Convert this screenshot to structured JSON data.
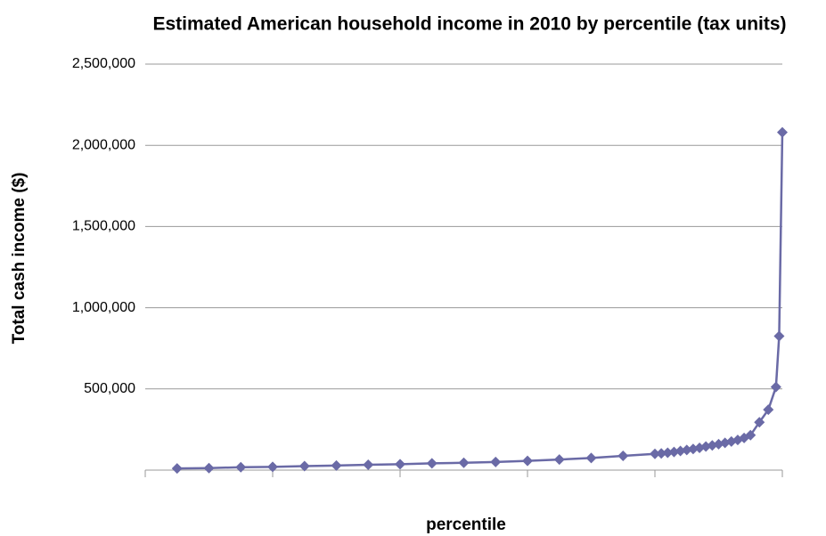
{
  "chart_data": {
    "type": "line",
    "title": "Estimated American household income in 2010 by percentile (tax units)",
    "x_label": "percentile",
    "y_label": "Total cash income ($)",
    "xlim": [
      0,
      100
    ],
    "xticks": [
      0,
      20,
      40,
      60,
      80,
      100
    ],
    "ylim": [
      0,
      2500000
    ],
    "yticks": [
      {
        "value": 500000,
        "label": "500,000"
      },
      {
        "value": 1000000,
        "label": "1,000,000"
      },
      {
        "value": 1500000,
        "label": "1,500,000"
      },
      {
        "value": 2000000,
        "label": "2,000,000"
      },
      {
        "value": 2500000,
        "label": "2,500,000"
      }
    ],
    "grid": true,
    "series": [
      {
        "color": "#6a6aa6",
        "x": [
          5,
          10,
          15,
          20,
          25,
          30,
          35,
          40,
          45,
          50,
          55,
          60,
          65,
          70,
          75,
          80,
          81,
          82,
          83,
          84,
          85,
          86,
          87,
          88,
          89,
          90,
          91,
          92,
          93,
          94,
          95,
          96.4,
          97.8,
          99,
          99.5,
          100
        ],
        "values": [
          10000,
          12000,
          18000,
          20000,
          25000,
          28000,
          33000,
          36000,
          42000,
          45000,
          50000,
          57000,
          65000,
          75000,
          88000,
          100000,
          103000,
          107000,
          112000,
          118000,
          124000,
          130000,
          137000,
          145000,
          152000,
          160000,
          168000,
          176000,
          186000,
          198000,
          215000,
          295000,
          372000,
          512000,
          825000,
          2080000
        ]
      }
    ]
  }
}
